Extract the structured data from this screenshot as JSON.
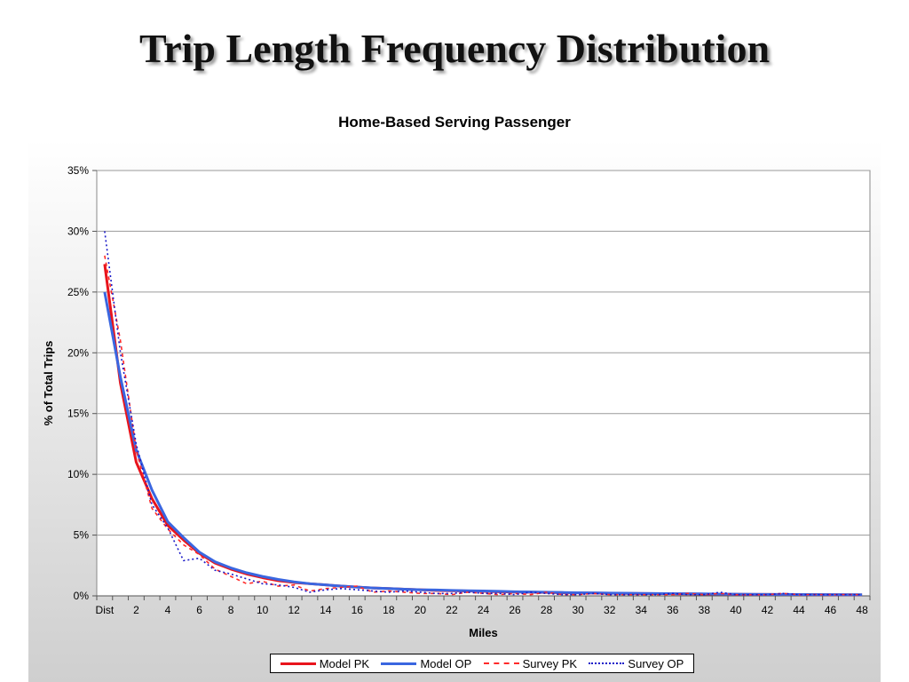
{
  "slide": {
    "title": "Trip Length Frequency Distribution"
  },
  "chart_data": {
    "type": "line",
    "title": "Home-Based Serving Passenger",
    "xlabel": "Miles",
    "ylabel": "% of Total Trips",
    "ylim": [
      0,
      35
    ],
    "yticks": [
      0,
      5,
      10,
      15,
      20,
      25,
      30,
      35
    ],
    "ytick_labels": [
      "0%",
      "5%",
      "10%",
      "15%",
      "20%",
      "25%",
      "30%",
      "35%"
    ],
    "x_tick_labels": [
      "Dist",
      "2",
      "4",
      "6",
      "8",
      "10",
      "12",
      "14",
      "16",
      "18",
      "20",
      "22",
      "24",
      "26",
      "28",
      "30",
      "32",
      "34",
      "36",
      "38",
      "40",
      "42",
      "44",
      "46",
      "48"
    ],
    "x": [
      1,
      2,
      3,
      4,
      5,
      6,
      7,
      8,
      9,
      10,
      11,
      12,
      13,
      14,
      15,
      16,
      17,
      18,
      19,
      20,
      21,
      22,
      23,
      24,
      25,
      26,
      27,
      28,
      29,
      30,
      31,
      32,
      33,
      34,
      35,
      36,
      37,
      38,
      39,
      40,
      41,
      42,
      43,
      44,
      45,
      46,
      47,
      48,
      49
    ],
    "grid": true,
    "legend_position": "bottom",
    "series": [
      {
        "name": "Model PK",
        "color": "#e8141c",
        "dash": "solid",
        "values": [
          27.3,
          17.5,
          11.0,
          8.0,
          5.8,
          4.6,
          3.5,
          2.7,
          2.2,
          1.8,
          1.5,
          1.25,
          1.1,
          1.0,
          0.9,
          0.8,
          0.72,
          0.65,
          0.6,
          0.55,
          0.5,
          0.45,
          0.42,
          0.4,
          0.37,
          0.34,
          0.32,
          0.3,
          0.28,
          0.26,
          0.25,
          0.23,
          0.22,
          0.2,
          0.19,
          0.18,
          0.17,
          0.16,
          0.15,
          0.14,
          0.13,
          0.12,
          0.12,
          0.11,
          0.1,
          0.1,
          0.09,
          0.09,
          0.08
        ]
      },
      {
        "name": "Model OP",
        "color": "#3a66e0",
        "dash": "solid",
        "values": [
          25.0,
          18.0,
          12.0,
          8.7,
          6.1,
          4.8,
          3.6,
          2.8,
          2.3,
          1.9,
          1.6,
          1.35,
          1.15,
          1.0,
          0.9,
          0.8,
          0.72,
          0.65,
          0.6,
          0.55,
          0.5,
          0.48,
          0.45,
          0.42,
          0.4,
          0.37,
          0.34,
          0.32,
          0.3,
          0.28,
          0.26,
          0.25,
          0.23,
          0.22,
          0.2,
          0.19,
          0.18,
          0.17,
          0.16,
          0.15,
          0.14,
          0.13,
          0.12,
          0.12,
          0.11,
          0.1,
          0.1,
          0.09,
          0.09
        ]
      },
      {
        "name": "Survey PK",
        "color": "#ff2a2a",
        "dash": "dashed",
        "values": [
          28.0,
          21.0,
          12.0,
          7.2,
          5.5,
          4.2,
          3.4,
          2.2,
          1.6,
          1.0,
          1.2,
          0.8,
          0.9,
          0.4,
          0.6,
          0.7,
          0.8,
          0.3,
          0.4,
          0.3,
          0.2,
          0.2,
          0.1,
          0.3,
          0.2,
          0.1,
          0.2,
          0.1,
          0.3,
          0.1,
          0.1,
          0.2,
          0.1,
          0.1,
          0.1,
          0.1,
          0.1,
          0.2,
          0.1,
          0.2,
          0.1,
          0.1,
          0.1,
          0.2,
          0.1,
          0.1,
          0.1,
          0.1,
          0.1
        ]
      },
      {
        "name": "Survey OP",
        "color": "#1a1ac8",
        "dash": "dotted",
        "values": [
          30.0,
          20.0,
          12.5,
          7.5,
          5.6,
          2.9,
          3.1,
          2.1,
          1.8,
          1.4,
          1.0,
          0.9,
          0.7,
          0.3,
          0.5,
          0.6,
          0.5,
          0.4,
          0.3,
          0.4,
          0.3,
          0.2,
          0.2,
          0.3,
          0.2,
          0.2,
          0.1,
          0.3,
          0.2,
          0.1,
          0.1,
          0.2,
          0.1,
          0.1,
          0.1,
          0.1,
          0.2,
          0.1,
          0.1,
          0.3,
          0.1,
          0.1,
          0.1,
          0.2,
          0.1,
          0.1,
          0.1,
          0.1,
          0.1
        ]
      }
    ]
  }
}
